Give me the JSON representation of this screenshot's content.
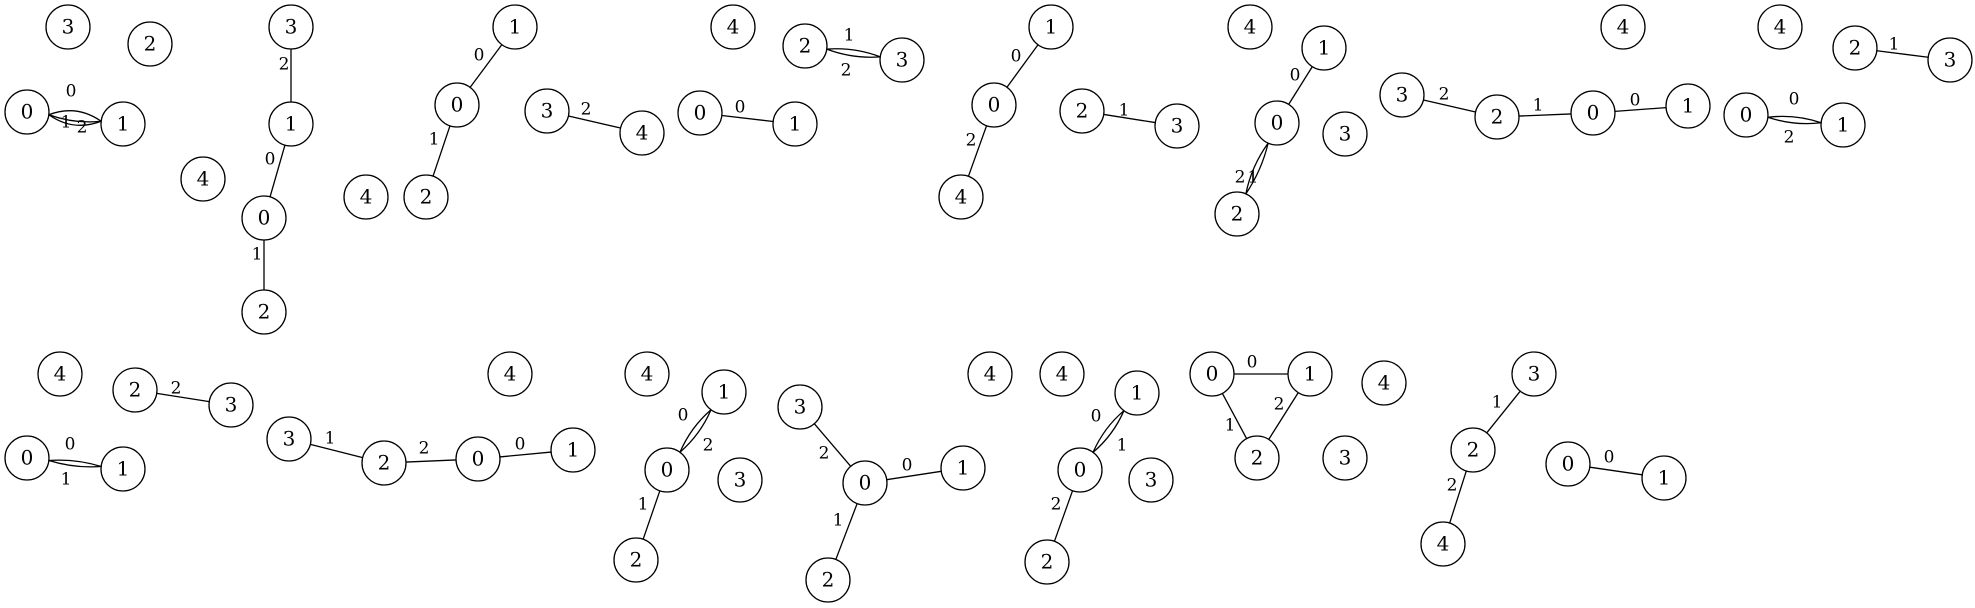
{
  "title": "",
  "node_radius_note": "",
  "graphs": [
    {
      "id": "g1",
      "nodes": [
        {
          "id": "0",
          "label": "0"
        },
        {
          "id": "1",
          "label": "1"
        },
        {
          "id": "2",
          "label": "2"
        },
        {
          "id": "3",
          "label": "3"
        },
        {
          "id": "4",
          "label": "4"
        }
      ],
      "edges": [
        {
          "from": "0",
          "to": "1",
          "label": "0"
        },
        {
          "from": "0",
          "to": "1",
          "label": "1"
        },
        {
          "from": "0",
          "to": "1",
          "label": "2"
        }
      ]
    },
    {
      "id": "g2",
      "nodes": [
        {
          "id": "0",
          "label": "0"
        },
        {
          "id": "1",
          "label": "1"
        },
        {
          "id": "2",
          "label": "2"
        },
        {
          "id": "3",
          "label": "3"
        }
      ],
      "edges": [
        {
          "from": "3",
          "to": "1",
          "label": "2"
        },
        {
          "from": "1",
          "to": "0",
          "label": "0"
        },
        {
          "from": "0",
          "to": "2",
          "label": "1"
        }
      ]
    },
    {
      "id": "g3",
      "nodes": [
        {
          "id": "1",
          "label": "1"
        },
        {
          "id": "0",
          "label": "0"
        },
        {
          "id": "2",
          "label": "2"
        },
        {
          "id": "4",
          "label": "4"
        }
      ],
      "edges": [
        {
          "from": "1",
          "to": "0",
          "label": "0"
        },
        {
          "from": "0",
          "to": "2",
          "label": "1"
        }
      ]
    },
    {
      "id": "g4",
      "nodes": [
        {
          "id": "3",
          "label": "3"
        },
        {
          "id": "4",
          "label": "4"
        }
      ],
      "edges": [
        {
          "from": "3",
          "to": "4",
          "label": "2"
        }
      ]
    },
    {
      "id": "g5",
      "nodes": [
        {
          "id": "4",
          "label": "4"
        },
        {
          "id": "2",
          "label": "2"
        },
        {
          "id": "3",
          "label": "3"
        },
        {
          "id": "0",
          "label": "0"
        },
        {
          "id": "1",
          "label": "1"
        }
      ],
      "edges": [
        {
          "from": "2",
          "to": "3",
          "label": "1"
        },
        {
          "from": "2",
          "to": "3",
          "label": "2"
        },
        {
          "from": "0",
          "to": "1",
          "label": "0"
        }
      ]
    },
    {
      "id": "g6",
      "nodes": [
        {
          "id": "1",
          "label": "1"
        },
        {
          "id": "0",
          "label": "0"
        },
        {
          "id": "4",
          "label": "4"
        },
        {
          "id": "2",
          "label": "2"
        },
        {
          "id": "3",
          "label": "3"
        }
      ],
      "edges": [
        {
          "from": "1",
          "to": "0",
          "label": "0"
        },
        {
          "from": "0",
          "to": "4",
          "label": "2"
        },
        {
          "from": "2",
          "to": "3",
          "label": "1"
        }
      ]
    },
    {
      "id": "g7",
      "nodes": [
        {
          "id": "4",
          "label": "4"
        },
        {
          "id": "1",
          "label": "1"
        },
        {
          "id": "0",
          "label": "0"
        },
        {
          "id": "3",
          "label": "3"
        },
        {
          "id": "2",
          "label": "2"
        }
      ],
      "edges": [
        {
          "from": "1",
          "to": "0",
          "label": "0"
        },
        {
          "from": "0",
          "to": "2",
          "label": "1"
        },
        {
          "from": "0",
          "to": "2",
          "label": "2"
        }
      ]
    },
    {
      "id": "g8",
      "nodes": [
        {
          "id": "3",
          "label": "3"
        },
        {
          "id": "2",
          "label": "2"
        },
        {
          "id": "0",
          "label": "0"
        },
        {
          "id": "1",
          "label": "1"
        }
      ],
      "edges": [
        {
          "from": "3",
          "to": "2",
          "label": "2"
        },
        {
          "from": "2",
          "to": "0",
          "label": "1"
        },
        {
          "from": "0",
          "to": "1",
          "label": "0"
        }
      ]
    },
    {
      "id": "g9",
      "nodes": [
        {
          "id": "4",
          "label": "4"
        },
        {
          "id": "0",
          "label": "0"
        },
        {
          "id": "1",
          "label": "1"
        }
      ],
      "edges": [
        {
          "from": "0",
          "to": "1",
          "label": "0"
        },
        {
          "from": "0",
          "to": "1",
          "label": "2"
        }
      ]
    },
    {
      "id": "g10",
      "nodes": [
        {
          "id": "4",
          "label": "4"
        },
        {
          "id": "2",
          "label": "2"
        },
        {
          "id": "3",
          "label": "3"
        }
      ],
      "edges": [
        {
          "from": "2",
          "to": "3",
          "label": "1"
        }
      ]
    },
    {
      "id": "g11",
      "nodes": [
        {
          "id": "4",
          "label": "4"
        },
        {
          "id": "2",
          "label": "2"
        },
        {
          "id": "3",
          "label": "3"
        },
        {
          "id": "0",
          "label": "0"
        },
        {
          "id": "1",
          "label": "1"
        }
      ],
      "edges": [
        {
          "from": "2",
          "to": "3",
          "label": "2"
        },
        {
          "from": "0",
          "to": "1",
          "label": "0"
        },
        {
          "from": "0",
          "to": "1",
          "label": "1"
        }
      ]
    },
    {
      "id": "g12",
      "nodes": [
        {
          "id": "3",
          "label": "3"
        },
        {
          "id": "2",
          "label": "2"
        },
        {
          "id": "0",
          "label": "0"
        },
        {
          "id": "1",
          "label": "1"
        },
        {
          "id": "4",
          "label": "4"
        }
      ],
      "edges": [
        {
          "from": "3",
          "to": "2",
          "label": "1"
        },
        {
          "from": "2",
          "to": "0",
          "label": "2"
        },
        {
          "from": "0",
          "to": "1",
          "label": "0"
        }
      ]
    },
    {
      "id": "g13",
      "nodes": [
        {
          "id": "4",
          "label": "4"
        },
        {
          "id": "1",
          "label": "1"
        },
        {
          "id": "0",
          "label": "0"
        },
        {
          "id": "3",
          "label": "3"
        },
        {
          "id": "2",
          "label": "2"
        }
      ],
      "edges": [
        {
          "from": "1",
          "to": "0",
          "label": "0"
        },
        {
          "from": "1",
          "to": "0",
          "label": "2"
        },
        {
          "from": "0",
          "to": "2",
          "label": "1"
        }
      ]
    },
    {
      "id": "g14",
      "nodes": [
        {
          "id": "3",
          "label": "3"
        },
        {
          "id": "0",
          "label": "0"
        },
        {
          "id": "1",
          "label": "1"
        },
        {
          "id": "2",
          "label": "2"
        },
        {
          "id": "4",
          "label": "4"
        }
      ],
      "edges": [
        {
          "from": "3",
          "to": "0",
          "label": "2"
        },
        {
          "from": "0",
          "to": "1",
          "label": "0"
        },
        {
          "from": "0",
          "to": "2",
          "label": "1"
        }
      ]
    },
    {
      "id": "g15",
      "nodes": [
        {
          "id": "4",
          "label": "4"
        },
        {
          "id": "1",
          "label": "1"
        },
        {
          "id": "0",
          "label": "0"
        },
        {
          "id": "3",
          "label": "3"
        },
        {
          "id": "2",
          "label": "2"
        }
      ],
      "edges": [
        {
          "from": "1",
          "to": "0",
          "label": "0"
        },
        {
          "from": "1",
          "to": "0",
          "label": "1"
        },
        {
          "from": "0",
          "to": "2",
          "label": "2"
        }
      ]
    },
    {
      "id": "g16",
      "nodes": [
        {
          "id": "0",
          "label": "0"
        },
        {
          "id": "1",
          "label": "1"
        },
        {
          "id": "2",
          "label": "2"
        },
        {
          "id": "4",
          "label": "4"
        },
        {
          "id": "3",
          "label": "3"
        }
      ],
      "edges": [
        {
          "from": "0",
          "to": "1",
          "label": "0"
        },
        {
          "from": "0",
          "to": "2",
          "label": "1"
        },
        {
          "from": "1",
          "to": "2",
          "label": "2"
        }
      ]
    },
    {
      "id": "g17",
      "nodes": [
        {
          "id": "3",
          "label": "3"
        },
        {
          "id": "2",
          "label": "2"
        },
        {
          "id": "4",
          "label": "4"
        },
        {
          "id": "0",
          "label": "0"
        },
        {
          "id": "1",
          "label": "1"
        }
      ],
      "edges": [
        {
          "from": "3",
          "to": "2",
          "label": "1"
        },
        {
          "from": "2",
          "to": "4",
          "label": "2"
        },
        {
          "from": "0",
          "to": "1",
          "label": "0"
        }
      ]
    }
  ]
}
